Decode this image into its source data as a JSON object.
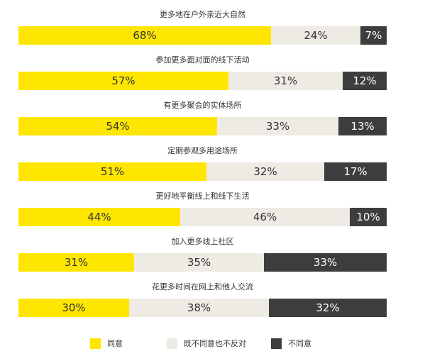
{
  "chart_data": {
    "type": "bar",
    "orientation": "horizontal",
    "stacked": true,
    "categories": [
      "更多地在户外亲近大自然",
      "参加更多面对面的线下活动",
      "有更多聚会的实体场所",
      "定期参观多用途场所",
      "更好地平衡线上和线下生活",
      "加入更多线上社区",
      "花更多时间在网上和他人交流"
    ],
    "series": [
      {
        "name": "同意",
        "color": "#FFE600",
        "text_color": "#333333",
        "values": [
          68,
          57,
          54,
          51,
          44,
          31,
          30
        ]
      },
      {
        "name": "既不同意也不反对",
        "color": "#EEEBE4",
        "text_color": "#333333",
        "values": [
          24,
          31,
          33,
          32,
          46,
          35,
          38
        ]
      },
      {
        "name": "不同意",
        "color": "#3D3D3D",
        "text_color": "#FFFFFF",
        "values": [
          7,
          12,
          13,
          17,
          10,
          33,
          32
        ]
      }
    ],
    "value_suffix": "%",
    "legend_position": "bottom",
    "grid": false
  }
}
